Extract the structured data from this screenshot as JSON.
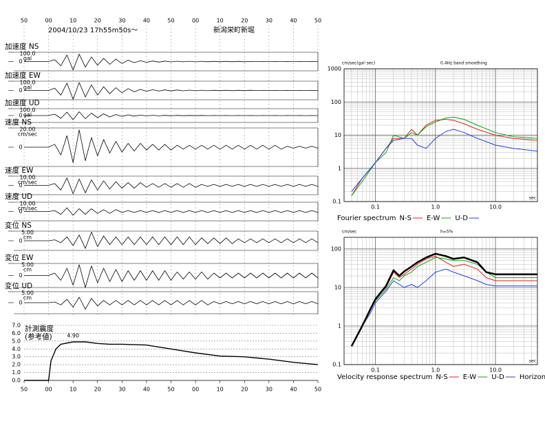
{
  "header": {
    "datetime": "2004/10/23 17h55m50s～",
    "station": "新潟栄町新堀"
  },
  "chart_data": [
    {
      "type": "waveform",
      "x": [
        0,
        10,
        12.5,
        15,
        17.5,
        20,
        22.5,
        25,
        27.5,
        30,
        32.5,
        35,
        37.5,
        40,
        42.5,
        45,
        47.5,
        50,
        52.5,
        55,
        57.5,
        60,
        62.5,
        65,
        67.5,
        70,
        72.5,
        75,
        77.5,
        80,
        82.5,
        85,
        87.5,
        90,
        92.5,
        95,
        97.5,
        100,
        102.5,
        105,
        107.5,
        110,
        112.5,
        115,
        117.5,
        120
      ],
      "xlim": [
        0,
        120
      ],
      "xticks": [
        {
          "value": 0,
          "label": "50"
        },
        {
          "value": 10,
          "label": "00"
        },
        {
          "value": 20,
          "label": "10"
        },
        {
          "value": 30,
          "label": "20"
        },
        {
          "value": 40,
          "label": "30"
        },
        {
          "value": 50,
          "label": "40"
        },
        {
          "value": 60,
          "label": "50"
        },
        {
          "value": 70,
          "label": "00"
        },
        {
          "value": 80,
          "label": "10"
        },
        {
          "value": 90,
          "label": "20"
        },
        {
          "value": 100,
          "label": "30"
        },
        {
          "value": 110,
          "label": "40"
        },
        {
          "value": 120,
          "label": "50"
        }
      ],
      "series": [
        {
          "name": "加速度 NS",
          "unit": "gal",
          "color": "#000000",
          "ylim": [
            -100,
            100
          ],
          "yticks": [
            {
              "value": 100,
              "label": "100.0"
            },
            0
          ],
          "values": [
            0,
            0,
            20,
            -45,
            70,
            -90,
            80,
            -60,
            50,
            -40,
            35,
            -30,
            25,
            -20,
            15,
            -12,
            10,
            -8,
            6,
            -6,
            5,
            -4,
            4,
            -3,
            3,
            -3,
            3,
            -2,
            2,
            -2,
            2,
            -2,
            2,
            -2,
            1,
            -1,
            1,
            -1,
            1,
            -1,
            1,
            -1,
            1,
            -1,
            1,
            -1
          ]
        },
        {
          "name": "加速度 EW",
          "unit": "gal",
          "color": "#000000",
          "ylim": [
            -100,
            100
          ],
          "yticks": [
            {
              "value": 100,
              "label": "100.0"
            },
            0
          ],
          "values": [
            0,
            0,
            25,
            -50,
            80,
            -95,
            85,
            -70,
            60,
            -50,
            40,
            -35,
            30,
            -25,
            20,
            -15,
            12,
            -10,
            8,
            -7,
            6,
            -5,
            5,
            -4,
            4,
            -3,
            3,
            -3,
            2,
            -2,
            2,
            -2,
            2,
            -2,
            2,
            -1,
            1,
            -1,
            1,
            -1,
            1,
            -1,
            1,
            -1,
            1,
            -1
          ]
        },
        {
          "name": "加速度 UD",
          "unit": "gal",
          "color": "#000000",
          "ylim": [
            -100,
            100
          ],
          "yticks": [
            {
              "value": 100,
              "label": "100.0"
            },
            0
          ],
          "values": [
            0,
            0,
            20,
            -40,
            50,
            -60,
            55,
            -45,
            35,
            -30,
            25,
            -20,
            15,
            -12,
            10,
            -8,
            6,
            -5,
            4,
            -4,
            3,
            -3,
            3,
            -2,
            2,
            -2,
            2,
            -1,
            1,
            -1,
            1,
            -1,
            1,
            -1,
            1,
            -1,
            1,
            -1,
            1,
            -1,
            1,
            -1,
            1,
            -1,
            1,
            -1
          ]
        },
        {
          "name": "速度 NS",
          "unit": "cm/sec",
          "color": "#000000",
          "ylim": [
            -20,
            20
          ],
          "yticks": [
            {
              "value": 20,
              "label": "20.00"
            },
            0
          ],
          "values": [
            0,
            0,
            3,
            -8,
            12,
            -16,
            18,
            -14,
            10,
            -9,
            8,
            -6,
            6,
            -5,
            4,
            -4,
            4,
            -3,
            3,
            -3,
            3,
            -3,
            2,
            -2,
            2,
            -2,
            2,
            -2,
            2,
            -2,
            2,
            -2,
            2,
            -2,
            2,
            -2,
            2,
            -2,
            2,
            -2,
            1,
            -1,
            1,
            -1,
            1,
            -1
          ]
        },
        {
          "name": "速度 EW",
          "unit": "cm/sec",
          "color": "#000000",
          "ylim": [
            -10,
            10
          ],
          "yticks": [
            {
              "value": 10,
              "label": "10.00"
            },
            0
          ],
          "values": [
            0,
            0,
            2,
            -5,
            8,
            -9,
            7,
            -8,
            6,
            -5,
            5,
            -4,
            4,
            -3,
            3,
            -3,
            3,
            -2,
            2,
            -2,
            2,
            -2,
            2,
            -2,
            2,
            -2,
            1,
            -1,
            1,
            -1,
            1,
            -1,
            1,
            -1,
            1,
            -1,
            1,
            -1,
            1,
            -1,
            1,
            -1,
            1,
            -1,
            1,
            -1
          ]
        },
        {
          "name": "速度 UD",
          "unit": "cm/sec",
          "color": "#000000",
          "ylim": [
            -10,
            10
          ],
          "yticks": [
            {
              "value": 10,
              "label": "10.00"
            },
            0
          ],
          "values": [
            0,
            0,
            1,
            -3,
            4,
            -4,
            3,
            -3,
            3,
            -2,
            2,
            -2,
            2,
            -1,
            1,
            -1,
            1,
            -1,
            1,
            -1,
            1,
            -1,
            1,
            -1,
            1,
            -1,
            1,
            -1,
            1,
            -1,
            1,
            -1,
            1,
            -1,
            1,
            -1,
            1,
            -1,
            1,
            -1,
            1,
            -1,
            1,
            -1,
            1,
            -1
          ]
        },
        {
          "name": "変位 NS",
          "unit": "cm",
          "color": "#000000",
          "ylim": [
            -5,
            5
          ],
          "yticks": [
            {
              "value": 5,
              "label": "5.00"
            },
            0
          ],
          "values": [
            0,
            0,
            0.5,
            -1,
            2,
            -2.5,
            3,
            -4,
            4.5,
            -3,
            2.5,
            -2,
            2,
            -2,
            2,
            -2,
            2,
            -2,
            2,
            -2,
            2,
            -2,
            2,
            -2,
            2,
            -2,
            1.5,
            -1.5,
            1.5,
            -1.5,
            1.5,
            -1.5,
            1,
            -1,
            1,
            -1,
            1,
            -1,
            1,
            -1,
            1,
            -1,
            1,
            -1,
            1,
            -1
          ]
        },
        {
          "name": "変位 EW",
          "unit": "cm",
          "color": "#000000",
          "ylim": [
            -5,
            5
          ],
          "yticks": [
            {
              "value": 5,
              "label": "5.00"
            },
            0
          ],
          "values": [
            0,
            0,
            1,
            -2,
            3,
            -4,
            4.5,
            -5,
            4,
            -3,
            3,
            -2.5,
            2.5,
            -2.5,
            2,
            -2,
            2,
            -2,
            2,
            -2,
            2,
            -2,
            1.5,
            -1.5,
            1.5,
            -1.5,
            1.5,
            -1.5,
            1,
            -1,
            1,
            -1,
            1,
            -1,
            1,
            -1,
            1,
            -1,
            1,
            -1,
            1,
            -1,
            1,
            -1,
            1,
            -1
          ]
        },
        {
          "name": "変位 UD",
          "unit": "cm",
          "color": "#000000",
          "ylim": [
            -5,
            5
          ],
          "yticks": [
            {
              "value": 5,
              "label": "5.00"
            },
            0
          ],
          "values": [
            0,
            0,
            0.3,
            -1,
            1.5,
            -2,
            2.5,
            -3,
            2,
            -1.5,
            1,
            -1,
            1,
            -1,
            1,
            -1,
            1,
            -1,
            1,
            -1,
            1,
            -1,
            1,
            -1,
            1,
            -1,
            1,
            -1,
            0.5,
            -0.5,
            0.5,
            -0.5,
            0.5,
            -0.5,
            0.5,
            -0.5,
            0.5,
            -0.5,
            0.5,
            -0.5,
            0.5,
            -0.5,
            0.5,
            -0.5,
            0.5,
            -0.5
          ]
        }
      ]
    },
    {
      "type": "line",
      "title": "計測震度",
      "subtitle": "(参考値)",
      "annotation": "4.90",
      "x": [
        0,
        10,
        11,
        13,
        15,
        20,
        25,
        30,
        35,
        40,
        50,
        60,
        70,
        80,
        90,
        100,
        110,
        120
      ],
      "values": [
        0,
        0,
        2.5,
        4,
        4.6,
        4.9,
        4.9,
        4.7,
        4.6,
        4.6,
        4.5,
        4.0,
        3.5,
        3.1,
        3.0,
        2.7,
        2.3,
        2.0
      ],
      "color": "#000000",
      "xlim": [
        0,
        120
      ],
      "xticks": [
        {
          "value": 0,
          "label": "50"
        },
        {
          "value": 10,
          "label": "00"
        },
        {
          "value": 20,
          "label": "10"
        },
        {
          "value": 30,
          "label": "20"
        },
        {
          "value": 40,
          "label": "30"
        },
        {
          "value": 50,
          "label": "40"
        },
        {
          "value": 60,
          "label": "50"
        },
        {
          "value": 70,
          "label": "00"
        },
        {
          "value": 80,
          "label": "10"
        },
        {
          "value": 90,
          "label": "20"
        },
        {
          "value": 100,
          "label": "30"
        },
        {
          "value": 110,
          "label": "40"
        },
        {
          "value": 120,
          "label": "50"
        }
      ],
      "ylim": [
        0,
        7
      ],
      "yticks": [
        {
          "value": 0,
          "label": "0.0"
        },
        {
          "value": 1,
          "label": "1.0"
        },
        {
          "value": 2,
          "label": "2.0"
        },
        {
          "value": 3,
          "label": "3.0"
        },
        {
          "value": 4,
          "label": "4.0"
        },
        {
          "value": 5,
          "label": "5.0"
        },
        {
          "value": 6,
          "label": "6.0"
        },
        {
          "value": 7,
          "label": "7.0"
        }
      ],
      "grid": true
    },
    {
      "type": "loglog",
      "ylabel": "cm/sec(gal･sec)",
      "note": "0.4Hz band smoothing",
      "legend_title": "Fourier spectrum",
      "xlabel": "sec",
      "x": [
        0.04,
        0.06,
        0.1,
        0.15,
        0.2,
        0.3,
        0.4,
        0.5,
        0.7,
        1,
        1.5,
        2,
        3,
        5,
        10,
        20,
        50
      ],
      "xlim": [
        0.03,
        50
      ],
      "xticks": [
        0.1,
        {
          "value": 1,
          "label": "1.0"
        },
        {
          "value": 10,
          "label": "10.0"
        }
      ],
      "ylim": [
        0.1,
        1000
      ],
      "yticks": [
        0.1,
        1,
        10,
        100,
        1000
      ],
      "log_x": true,
      "log_y": true,
      "grid": true,
      "minor_grid": true,
      "series": [
        {
          "name": "N-S",
          "color": "#e02020",
          "line_width": 1,
          "values": [
            0.15,
            0.5,
            1.5,
            4,
            8,
            8,
            15,
            10,
            20,
            28,
            30,
            28,
            22,
            15,
            10,
            8,
            7
          ]
        },
        {
          "name": "E-W",
          "color": "#10a010",
          "line_width": 1,
          "values": [
            0.15,
            0.4,
            1.5,
            3,
            10,
            8,
            12,
            10,
            18,
            25,
            33,
            35,
            30,
            20,
            12,
            9,
            8
          ]
        },
        {
          "name": "U-D",
          "color": "#2040e0",
          "line_width": 1,
          "values": [
            0.2,
            0.5,
            1.5,
            4,
            7,
            8,
            8,
            5,
            4,
            8,
            13,
            15,
            12,
            8,
            5,
            4,
            3.3
          ]
        }
      ]
    },
    {
      "type": "loglog",
      "ylabel": "cm/sec",
      "note": "h=5%",
      "legend_title": "Velocity response spectrum",
      "xlabel": "sec",
      "x": [
        0.04,
        0.06,
        0.08,
        0.1,
        0.15,
        0.2,
        0.25,
        0.3,
        0.4,
        0.5,
        0.7,
        1,
        1.5,
        2,
        3,
        5,
        7,
        10,
        20,
        50
      ],
      "xlim": [
        0.03,
        50
      ],
      "xticks": [
        0.1,
        {
          "value": 1,
          "label": "1.0"
        },
        {
          "value": 10,
          "label": "10.0"
        }
      ],
      "ylim": [
        0.1,
        200
      ],
      "yticks": [
        0.1,
        1,
        10,
        100
      ],
      "log_x": true,
      "log_y": true,
      "grid": true,
      "minor_grid": true,
      "series": [
        {
          "name": "N-S",
          "color": "#e02020",
          "line_width": 1,
          "values": [
            0.3,
            1,
            2.5,
            5,
            10,
            25,
            18,
            22,
            30,
            40,
            55,
            65,
            45,
            35,
            40,
            30,
            18,
            15,
            15,
            15
          ]
        },
        {
          "name": "E-W",
          "color": "#10a010",
          "line_width": 1,
          "values": [
            0.3,
            1,
            2.5,
            4.5,
            9,
            18,
            15,
            20,
            25,
            35,
            45,
            60,
            55,
            50,
            50,
            40,
            25,
            18,
            18,
            18
          ]
        },
        {
          "name": "U-D",
          "color": "#2040e0",
          "line_width": 1,
          "values": [
            0.3,
            1,
            2,
            4,
            8,
            15,
            12,
            10,
            12,
            10,
            15,
            25,
            30,
            25,
            20,
            15,
            12,
            11,
            11,
            11
          ]
        },
        {
          "name": "Horizon",
          "color": "#000000",
          "line_width": 2.5,
          "values": [
            0.3,
            1,
            2.5,
            5,
            11,
            28,
            20,
            26,
            35,
            45,
            60,
            75,
            65,
            55,
            60,
            45,
            25,
            22,
            22,
            22
          ]
        }
      ]
    }
  ]
}
